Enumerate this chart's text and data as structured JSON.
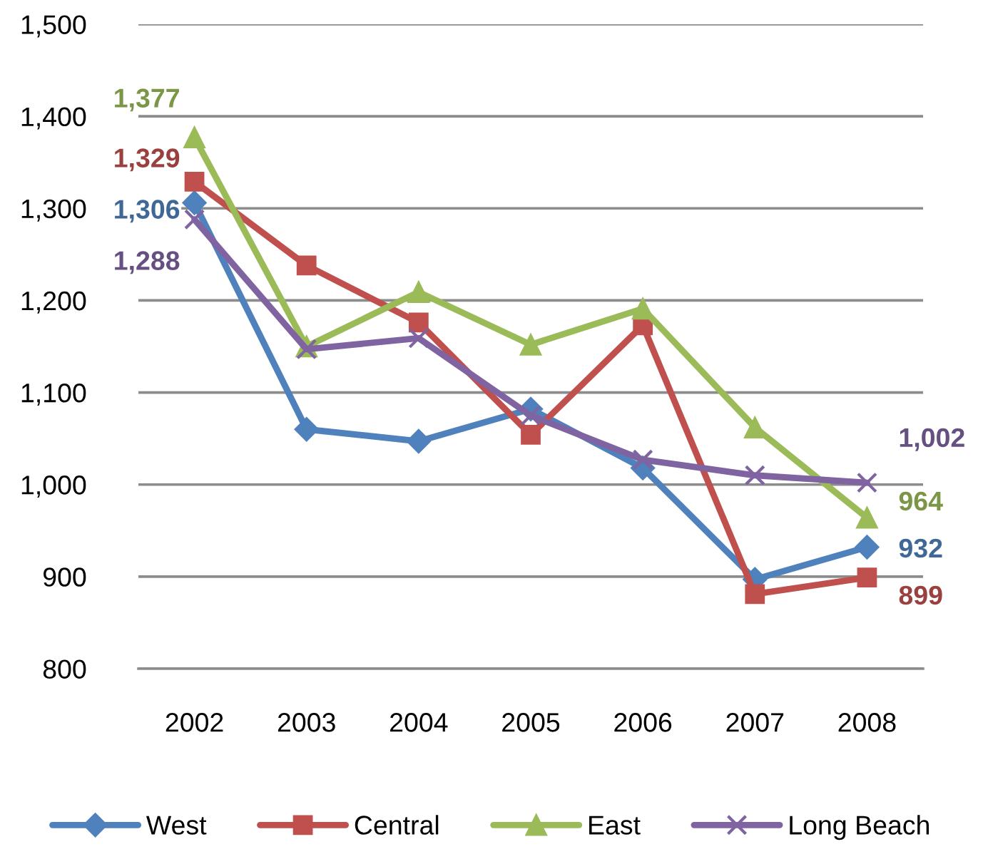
{
  "chart_data": {
    "type": "line",
    "categories": [
      "2002",
      "2003",
      "2004",
      "2005",
      "2006",
      "2007",
      "2008"
    ],
    "ylim": [
      800,
      1500
    ],
    "yticks": [
      800,
      900,
      {
        "value": 1000,
        "label": "1,000"
      },
      {
        "value": 1100,
        "label": "1,100"
      },
      {
        "value": 1200,
        "label": "1,200"
      },
      {
        "value": 1300,
        "label": "1,300"
      },
      {
        "value": 1400,
        "label": "1,400"
      },
      {
        "value": 1500,
        "label": "1,500"
      }
    ],
    "grid": "y",
    "legend": "bottom",
    "series": [
      {
        "name": "West",
        "color": "#4f81bd",
        "marker": "diamond",
        "values": [
          1306,
          1060,
          1047,
          1082,
          1018,
          897,
          932
        ],
        "value_labels": [
          "1,306",
          null,
          null,
          null,
          null,
          null,
          "932"
        ]
      },
      {
        "name": "Central",
        "color": "#c0504d",
        "marker": "square",
        "values": [
          1329,
          1238,
          1176,
          1054,
          1173,
          881,
          899
        ],
        "value_labels": [
          "1,329",
          null,
          null,
          null,
          null,
          null,
          "899"
        ]
      },
      {
        "name": "East",
        "color": "#9bbb59",
        "marker": "triangle",
        "values": [
          1377,
          1150,
          1209,
          1152,
          1191,
          1062,
          964
        ],
        "value_labels": [
          "1,377",
          null,
          null,
          null,
          null,
          null,
          "964"
        ]
      },
      {
        "name": "Long Beach",
        "color": "#8064a2",
        "marker": "cross",
        "values": [
          1288,
          1147,
          1159,
          1075,
          1027,
          1010,
          1002
        ],
        "value_labels": [
          "1,288",
          null,
          null,
          null,
          null,
          null,
          "1,002"
        ]
      }
    ]
  }
}
